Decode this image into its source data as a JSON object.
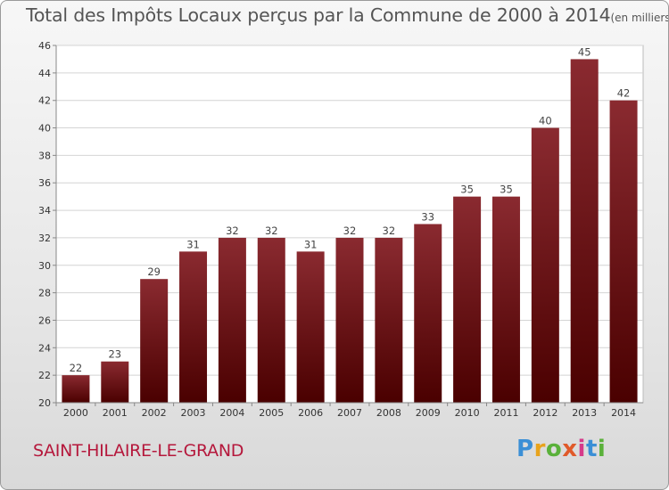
{
  "chart_data": {
    "type": "bar",
    "title": "Total des Impôts Locaux perçus par la Commune de 2000 à 2014",
    "unit": "(en milliers d'€)",
    "categories": [
      "2000",
      "2001",
      "2002",
      "2003",
      "2004",
      "2005",
      "2006",
      "2007",
      "2008",
      "2009",
      "2010",
      "2011",
      "2012",
      "2013",
      "2014"
    ],
    "values": [
      22,
      23,
      29,
      31,
      32,
      32,
      31,
      32,
      32,
      33,
      35,
      35,
      40,
      45,
      42
    ],
    "ylim": [
      20,
      46
    ],
    "yticks": [
      20,
      22,
      24,
      26,
      28,
      30,
      32,
      34,
      36,
      38,
      40,
      42,
      44,
      46
    ],
    "xlabel": "",
    "ylabel": "",
    "grid": true,
    "bar_color_top": "#8a2a30",
    "bar_color_bottom": "#4a0000"
  },
  "footer": {
    "commune": "SAINT-HILAIRE-LE-GRAND",
    "logo_text": [
      "P",
      "r",
      "o",
      "x",
      "i",
      "t",
      "i"
    ]
  }
}
